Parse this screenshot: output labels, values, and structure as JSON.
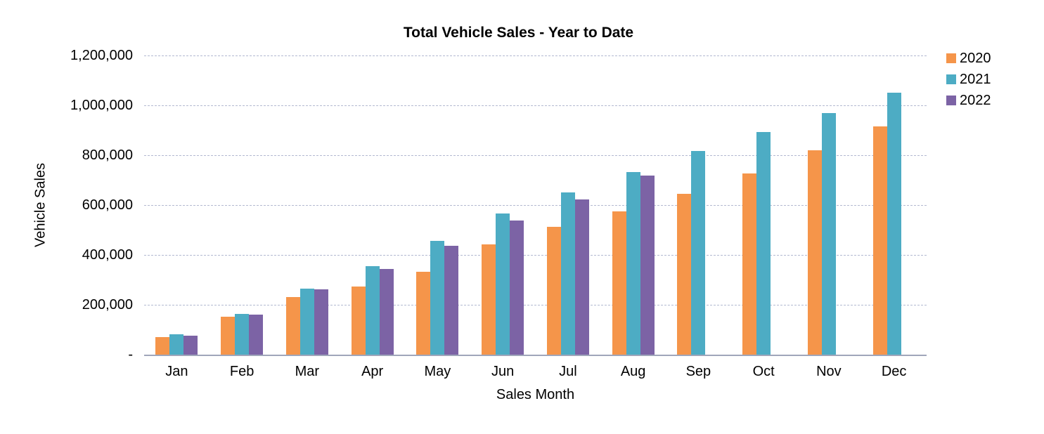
{
  "chart_data": {
    "type": "bar",
    "title": "Total Vehicle Sales - Year to Date",
    "xlabel": "Sales Month",
    "ylabel": "Vehicle Sales",
    "categories": [
      "Jan",
      "Feb",
      "Mar",
      "Apr",
      "May",
      "Jun",
      "Jul",
      "Aug",
      "Sep",
      "Oct",
      "Nov",
      "Dec"
    ],
    "series": [
      {
        "name": "2020",
        "color": "#F5954A",
        "values": [
          70000,
          151000,
          232000,
          272000,
          333000,
          442000,
          513000,
          576000,
          645000,
          727000,
          820000,
          916000
        ]
      },
      {
        "name": "2021",
        "color": "#4DACC4",
        "values": [
          81000,
          164000,
          264000,
          355000,
          455000,
          567000,
          651000,
          733000,
          818000,
          893000,
          970000,
          1050000
        ]
      },
      {
        "name": "2022",
        "color": "#7C63A5",
        "values": [
          77000,
          161000,
          262000,
          343000,
          438000,
          537000,
          622000,
          717000,
          null,
          null,
          null,
          null
        ]
      }
    ],
    "y_axis": {
      "min": 0,
      "max": 1200000,
      "step": 200000,
      "tick_labels": [
        "-",
        "200,000",
        "400,000",
        "600,000",
        "800,000",
        "1,000,000",
        "1,200,000"
      ]
    },
    "legend": {
      "position": "top-right"
    },
    "grid": "horizontal-dashed",
    "grid_color": "#b3b9d1",
    "axis_color": "#a0a6ba"
  }
}
